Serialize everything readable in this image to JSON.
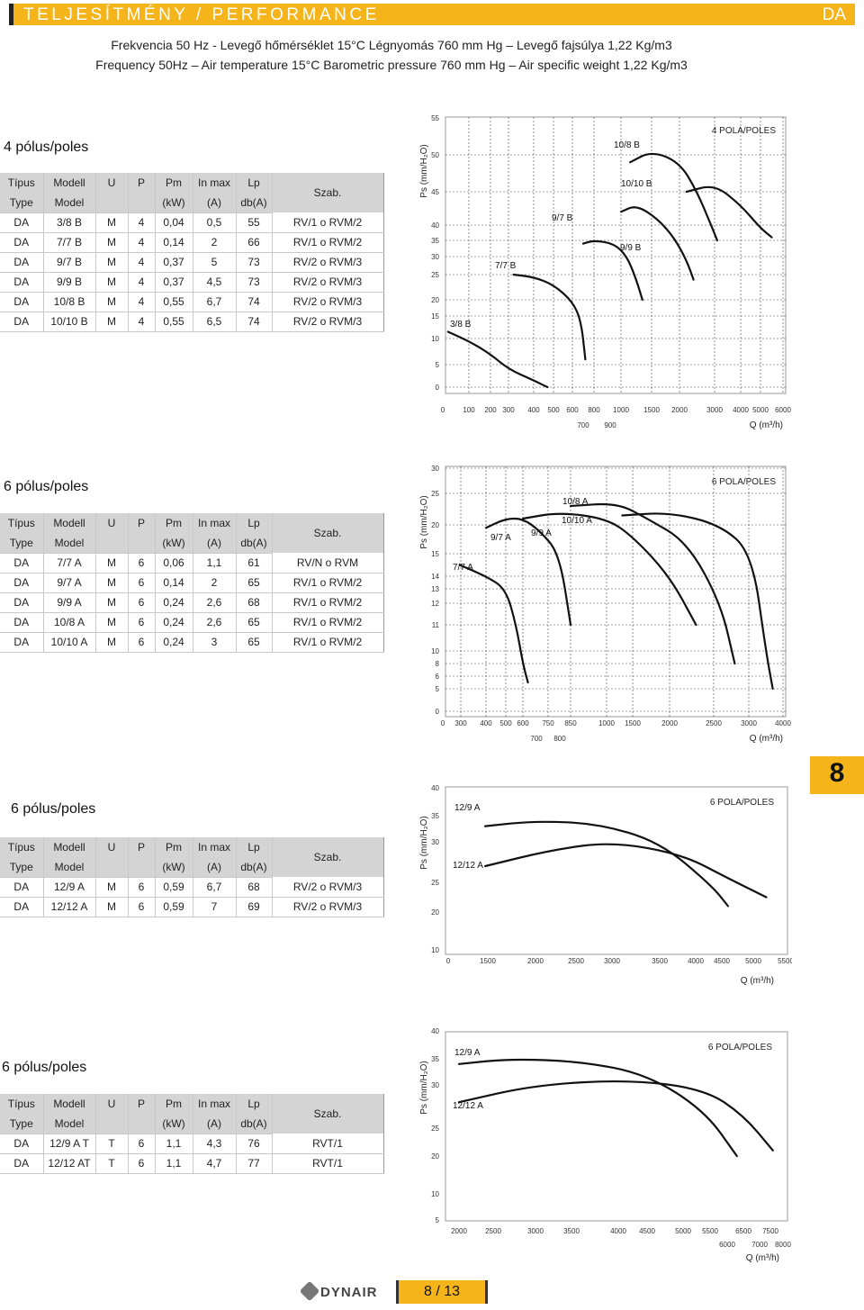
{
  "header": {
    "title": "TELJESÍTMÉNY / PERFORMANCE",
    "code": "DA"
  },
  "subtitle": {
    "hu": "Frekvencia 50 Hz - Levegő hőmérséklet 15°C  Légnyomás 760 mm Hg – Levegő fajsúlya 1,22 Kg/m3",
    "en": "Frequency 50Hz – Air temperature 15°C  Barometric pressure 760 mm Hg – Air specific weight 1,22 Kg/m3"
  },
  "columns": {
    "row1": [
      "Típus",
      "Modell",
      "U",
      "P",
      "Pm",
      "In max",
      "Lp",
      "Szab."
    ],
    "row2": [
      "Type",
      "Model",
      "",
      "",
      "(kW)",
      "(A)",
      "db(A)"
    ]
  },
  "sections": [
    {
      "poles": "4 pólus/poles",
      "rows": [
        [
          "DA",
          "3/8 B",
          "M",
          "4",
          "0,04",
          "0,5",
          "55",
          "RV/1 o RVM/2"
        ],
        [
          "DA",
          "7/7 B",
          "M",
          "4",
          "0,14",
          "2",
          "66",
          "RV/1 o RVM/2"
        ],
        [
          "DA",
          "9/7 B",
          "M",
          "4",
          "0,37",
          "5",
          "73",
          "RV/2 o RVM/3"
        ],
        [
          "DA",
          "9/9 B",
          "M",
          "4",
          "0,37",
          "4,5",
          "73",
          "RV/2 o RVM/3"
        ],
        [
          "DA",
          "10/8 B",
          "M",
          "4",
          "0,55",
          "6,7",
          "74",
          "RV/2 o RVM/3"
        ],
        [
          "DA",
          "10/10 B",
          "M",
          "4",
          "0,55",
          "6,5",
          "74",
          "RV/2 o RVM/3"
        ]
      ]
    },
    {
      "poles": "6 pólus/poles",
      "rows": [
        [
          "DA",
          "7/7 A",
          "M",
          "6",
          "0,06",
          "1,1",
          "61",
          "RV/N o RVM"
        ],
        [
          "DA",
          "9/7 A",
          "M",
          "6",
          "0,14",
          "2",
          "65",
          "RV/1 o RVM/2"
        ],
        [
          "DA",
          "9/9 A",
          "M",
          "6",
          "0,24",
          "2,6",
          "68",
          "RV/1 o RVM/2"
        ],
        [
          "DA",
          "10/8 A",
          "M",
          "6",
          "0,24",
          "2,6",
          "65",
          "RV/1 o RVM/2"
        ],
        [
          "DA",
          "10/10 A",
          "M",
          "6",
          "0,24",
          "3",
          "65",
          "RV/1 o RVM/2"
        ]
      ]
    },
    {
      "poles": "6 pólus/poles",
      "rows": [
        [
          "DA",
          "12/9 A",
          "M",
          "6",
          "0,59",
          "6,7",
          "68",
          "RV/2 o RVM/3"
        ],
        [
          "DA",
          "12/12 A",
          "M",
          "6",
          "0,59",
          "7",
          "69",
          "RV/2 o RVM/3"
        ]
      ]
    },
    {
      "poles": "6 pólus/poles",
      "rows": [
        [
          "DA",
          "12/9 A T",
          "T",
          "6",
          "1,1",
          "4,3",
          "76",
          "RVT/1"
        ],
        [
          "DA",
          "12/12 AT",
          "T",
          "6",
          "1,1",
          "4,7",
          "77",
          "RVT/1"
        ]
      ]
    }
  ],
  "chart_data": [
    {
      "type": "line",
      "title": "4 POLA/POLES",
      "ylabel": "Ps (mm/H₂O)",
      "xlabel": "Q (m³/h)",
      "yticks": [
        0,
        5,
        10,
        15,
        20,
        25,
        30,
        35,
        40,
        45,
        50,
        55
      ],
      "xticks_top": [
        "100",
        "200",
        "300",
        "400",
        "500",
        "600",
        "800",
        "1000",
        "1500",
        "2000",
        "3000",
        "4000",
        "5000",
        "6000"
      ],
      "xticks_bottom": [
        "700",
        "900"
      ],
      "grid": true,
      "series": [
        {
          "name": "3/8 B",
          "points": [
            [
              20,
              11.5
            ],
            [
              100,
              9.5
            ],
            [
              200,
              7
            ],
            [
              300,
              4
            ],
            [
              400,
              1.5
            ],
            [
              470,
              0
            ]
          ]
        },
        {
          "name": "7/7 B",
          "points": [
            [
              320,
              25
            ],
            [
              400,
              24.5
            ],
            [
              500,
              23
            ],
            [
              600,
              19.5
            ],
            [
              680,
              14
            ],
            [
              720,
              6
            ]
          ]
        },
        {
          "name": "9/7 B",
          "points": [
            [
              700,
              34
            ],
            [
              800,
              35
            ],
            [
              950,
              34
            ],
            [
              1100,
              30
            ],
            [
              1250,
              24
            ],
            [
              1350,
              20
            ]
          ]
        },
        {
          "name": "9/9 B",
          "points": [
            [
              1000,
              42
            ],
            [
              1250,
              43
            ],
            [
              1600,
              41
            ],
            [
              1900,
              36
            ],
            [
              2200,
              29
            ],
            [
              2400,
              24
            ]
          ]
        },
        {
          "name": "10/8 B",
          "points": [
            [
              1150,
              49
            ],
            [
              1500,
              50.5
            ],
            [
              2000,
              49
            ],
            [
              2500,
              45
            ],
            [
              2900,
              40
            ],
            [
              3100,
              35
            ]
          ]
        },
        {
          "name": "10/10 B",
          "points": [
            [
              2200,
              45
            ],
            [
              3000,
              46
            ],
            [
              4000,
              43
            ],
            [
              5000,
              39
            ],
            [
              5500,
              36
            ]
          ]
        }
      ]
    },
    {
      "type": "line",
      "title": "6 POLA/POLES",
      "ylabel": "Ps (mm/H₂O)",
      "xlabel": "Q (m³/h)",
      "yticks": [
        0,
        5,
        6,
        8,
        10,
        11,
        12,
        13,
        14,
        15,
        20,
        25,
        30
      ],
      "xticks_top": [
        "300",
        "400",
        "500",
        "600",
        "750",
        "850",
        "1000",
        "1500",
        "2000",
        "2500",
        "3000",
        "4000"
      ],
      "xticks_bottom": [
        "700",
        "800"
      ],
      "grid": true,
      "series": [
        {
          "name": "7/7 A",
          "points": [
            [
              280,
              14.5
            ],
            [
              400,
              14
            ],
            [
              500,
              13
            ],
            [
              560,
              11
            ],
            [
              600,
              8
            ],
            [
              630,
              5.5
            ]
          ]
        },
        {
          "name": "9/7 A",
          "points": [
            [
              400,
              19.5
            ],
            [
              500,
              21
            ],
            [
              600,
              21
            ],
            [
              700,
              19
            ],
            [
              800,
              15
            ],
            [
              850,
              11
            ]
          ]
        },
        {
          "name": "9/9 A",
          "points": [
            [
              600,
              21
            ],
            [
              800,
              22
            ],
            [
              1000,
              21
            ],
            [
              1500,
              18
            ],
            [
              2000,
              14
            ],
            [
              2300,
              11
            ]
          ]
        },
        {
          "name": "10/8 A",
          "points": [
            [
              850,
              23
            ],
            [
              1200,
              23.5
            ],
            [
              1700,
              21
            ],
            [
              2200,
              17
            ],
            [
              2600,
              12
            ],
            [
              2800,
              8
            ]
          ]
        },
        {
          "name": "10/10 A",
          "points": [
            [
              1300,
              21.5
            ],
            [
              2000,
              22
            ],
            [
              2600,
              20
            ],
            [
              3100,
              15
            ],
            [
              3500,
              10
            ],
            [
              3700,
              5
            ]
          ]
        }
      ]
    },
    {
      "type": "line",
      "title": "6 POLA/POLES",
      "ylabel": "Ps (mm/H₂O)",
      "xlabel": "Q (m³/h)",
      "yticks": [
        10,
        20,
        25,
        30,
        35,
        40
      ],
      "xticks_top": [
        "0",
        "1500",
        "2000",
        "2500",
        "3000",
        "3500",
        "4000",
        "4500",
        "5000",
        "5500"
      ],
      "grid": false,
      "series": [
        {
          "name": "12/9 A",
          "points": [
            [
              1400,
              33
            ],
            [
              2000,
              34
            ],
            [
              2800,
              33.5
            ],
            [
              3500,
              30
            ],
            [
              4300,
              24.5
            ],
            [
              4600,
              21
            ]
          ]
        },
        {
          "name": "12/12 A",
          "points": [
            [
              1400,
              27
            ],
            [
              2200,
              29
            ],
            [
              3000,
              30
            ],
            [
              3800,
              28.5
            ],
            [
              4600,
              25.5
            ],
            [
              5200,
              22.5
            ]
          ]
        }
      ]
    },
    {
      "type": "line",
      "title": "6 POLA/POLES",
      "ylabel": "Ps (mm/H₂O)",
      "xlabel": "Q (m³/h)",
      "yticks": [
        5,
        10,
        20,
        25,
        30,
        35,
        40
      ],
      "xticks_top": [
        "2000",
        "2500",
        "3000",
        "3500",
        "4000",
        "4500",
        "5000",
        "5500",
        "6500",
        "7500"
      ],
      "xticks_bottom": [
        "6000",
        "7000",
        "8000"
      ],
      "grid": false,
      "series": [
        {
          "name": "12/9 A",
          "points": [
            [
              2000,
              34
            ],
            [
              2700,
              35
            ],
            [
              3600,
              34.5
            ],
            [
              4500,
              32
            ],
            [
              5400,
              27
            ],
            [
              6300,
              20
            ]
          ]
        },
        {
          "name": "12/12 A",
          "points": [
            [
              2000,
              28
            ],
            [
              3000,
              30
            ],
            [
              4200,
              31
            ],
            [
              5400,
              29.5
            ],
            [
              6500,
              26.5
            ],
            [
              7600,
              21
            ]
          ]
        }
      ]
    }
  ],
  "page": {
    "badge": "8",
    "logo": "DYNAIR",
    "number": "8 / 13"
  }
}
